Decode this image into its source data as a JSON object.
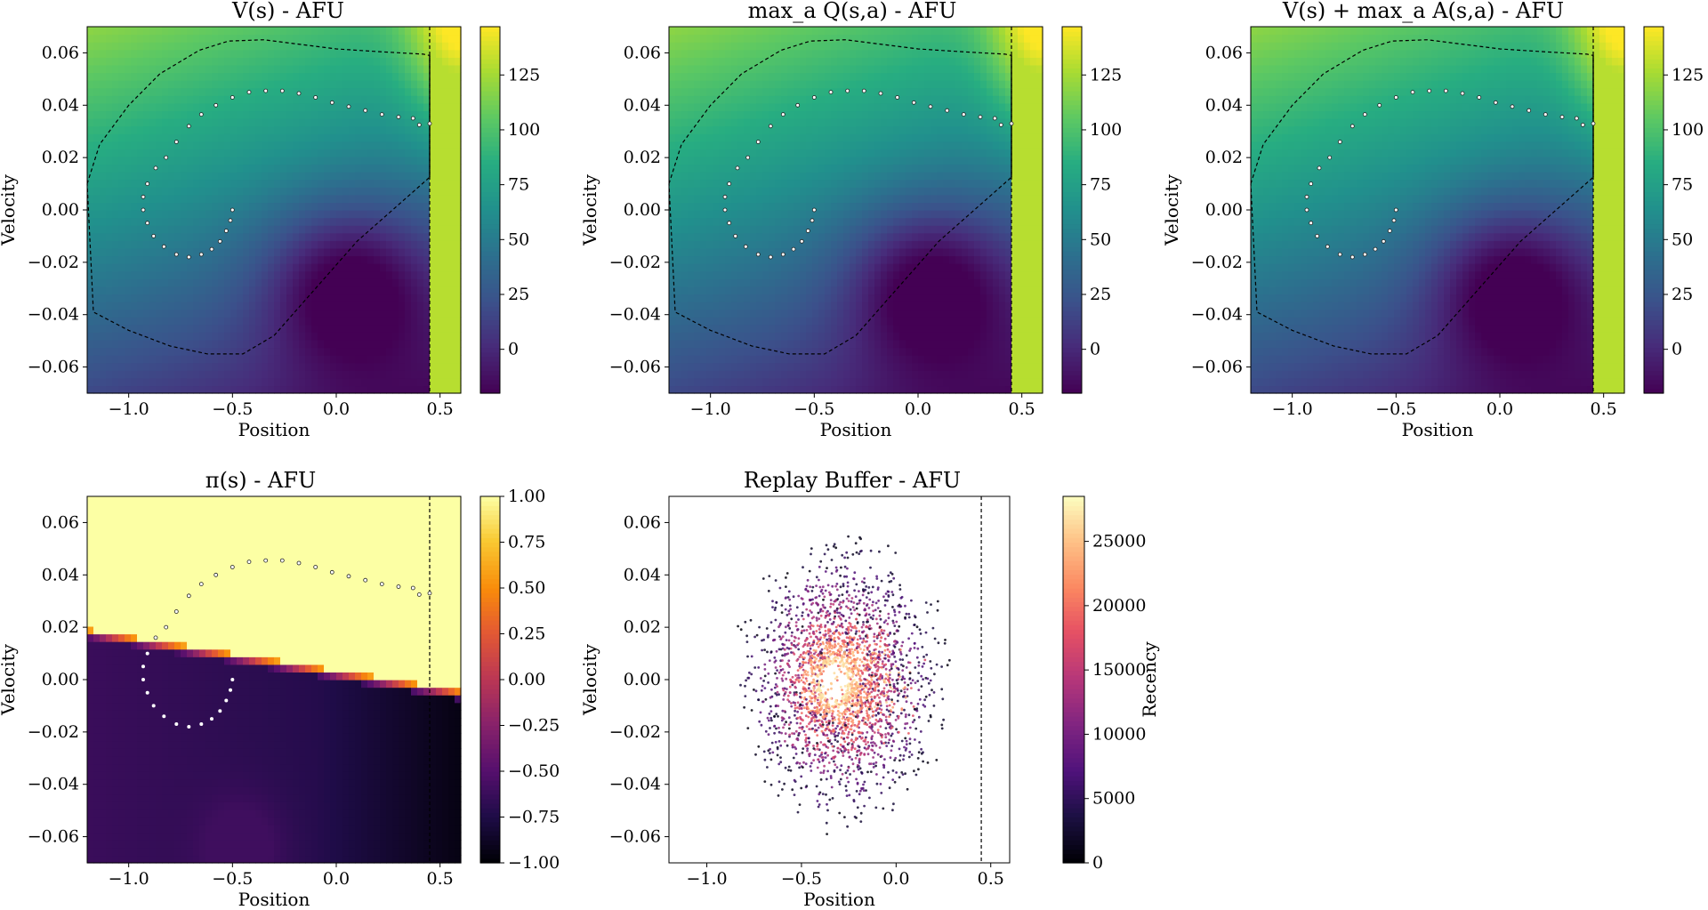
{
  "chart_data": [
    {
      "type": "heatmap",
      "title": "V(s) - AFU",
      "xlabel": "Position",
      "ylabel": "Velocity",
      "xlim": [
        -1.2,
        0.6
      ],
      "ylim": [
        -0.07,
        0.07
      ],
      "xticks": [
        -1.0,
        -0.5,
        0.0,
        0.5
      ],
      "xtick_labels": [
        "−1.0",
        "−0.5",
        "0.0",
        "0.5"
      ],
      "yticks": [
        -0.06,
        -0.04,
        -0.02,
        0.0,
        0.02,
        0.04,
        0.06
      ],
      "ytick_labels": [
        "−0.06",
        "−0.04",
        "−0.02",
        "0.00",
        "0.02",
        "0.04",
        "0.06"
      ],
      "colormap": "viridis",
      "clim": [
        -20,
        147
      ],
      "colorbar_ticks": [
        0,
        25,
        50,
        75,
        100,
        125
      ],
      "colorbar_tick_labels": [
        "0",
        "25",
        "50",
        "75",
        "100",
        "125"
      ],
      "goal_position": 0.45,
      "contour": true,
      "trajectory": true
    },
    {
      "type": "heatmap",
      "title": "max_a Q(s,a) - AFU",
      "xlabel": "Position",
      "ylabel": "Velocity",
      "xlim": [
        -1.2,
        0.6
      ],
      "ylim": [
        -0.07,
        0.07
      ],
      "xticks": [
        -1.0,
        -0.5,
        0.0,
        0.5
      ],
      "xtick_labels": [
        "−1.0",
        "−0.5",
        "0.0",
        "0.5"
      ],
      "yticks": [
        -0.06,
        -0.04,
        -0.02,
        0.0,
        0.02,
        0.04,
        0.06
      ],
      "ytick_labels": [
        "−0.06",
        "−0.04",
        "−0.02",
        "0.00",
        "0.02",
        "0.04",
        "0.06"
      ],
      "colormap": "viridis",
      "clim": [
        -20,
        147
      ],
      "colorbar_ticks": [
        0,
        25,
        50,
        75,
        100,
        125
      ],
      "colorbar_tick_labels": [
        "0",
        "25",
        "50",
        "75",
        "100",
        "125"
      ],
      "goal_position": 0.45,
      "contour": true,
      "trajectory": true
    },
    {
      "type": "heatmap",
      "title": "V(s) + max_a A(s,a) - AFU",
      "xlabel": "Position",
      "ylabel": "Velocity",
      "xlim": [
        -1.2,
        0.6
      ],
      "ylim": [
        -0.07,
        0.07
      ],
      "xticks": [
        -1.0,
        -0.5,
        0.0,
        0.5
      ],
      "xtick_labels": [
        "−1.0",
        "−0.5",
        "0.0",
        "0.5"
      ],
      "yticks": [
        -0.06,
        -0.04,
        -0.02,
        0.0,
        0.02,
        0.04,
        0.06
      ],
      "ytick_labels": [
        "−0.06",
        "−0.04",
        "−0.02",
        "0.00",
        "0.02",
        "0.04",
        "0.06"
      ],
      "colormap": "viridis",
      "clim": [
        -20,
        147
      ],
      "colorbar_ticks": [
        0,
        25,
        50,
        75,
        100,
        125
      ],
      "colorbar_tick_labels": [
        "0",
        "25",
        "50",
        "75",
        "100",
        "125"
      ],
      "goal_position": 0.45,
      "contour": true,
      "trajectory": true
    },
    {
      "type": "heatmap",
      "title": "π(s) - AFU",
      "xlabel": "Position",
      "ylabel": "Velocity",
      "xlim": [
        -1.2,
        0.6
      ],
      "ylim": [
        -0.07,
        0.07
      ],
      "xticks": [
        -1.0,
        -0.5,
        0.0,
        0.5
      ],
      "xtick_labels": [
        "−1.0",
        "−0.5",
        "0.0",
        "0.5"
      ],
      "yticks": [
        -0.06,
        -0.04,
        -0.02,
        0.0,
        0.02,
        0.04,
        0.06
      ],
      "ytick_labels": [
        "−0.06",
        "−0.04",
        "−0.02",
        "0.00",
        "0.02",
        "0.04",
        "0.06"
      ],
      "colormap": "inferno",
      "clim": [
        -1.0,
        1.0
      ],
      "colorbar_ticks": [
        -1.0,
        -0.75,
        -0.5,
        -0.25,
        0.0,
        0.25,
        0.5,
        0.75,
        1.0
      ],
      "colorbar_tick_labels": [
        "−1.00",
        "−0.75",
        "−0.50",
        "−0.25",
        "0.00",
        "0.25",
        "0.50",
        "0.75",
        "1.00"
      ],
      "goal_position": 0.45,
      "contour": false,
      "trajectory": true
    },
    {
      "type": "scatter",
      "title": "Replay Buffer - AFU",
      "xlabel": "Position",
      "ylabel": "Velocity",
      "xlim": [
        -1.2,
        0.6
      ],
      "ylim": [
        -0.07,
        0.07
      ],
      "xticks": [
        -1.0,
        -0.5,
        0.0,
        0.5
      ],
      "xtick_labels": [
        "−1.0",
        "−0.5",
        "0.0",
        "0.5"
      ],
      "yticks": [
        -0.06,
        -0.04,
        -0.02,
        0.0,
        0.02,
        0.04,
        0.06
      ],
      "ytick_labels": [
        "−0.06",
        "−0.04",
        "−0.02",
        "0.00",
        "0.02",
        "0.04",
        "0.06"
      ],
      "colormap": "magma",
      "clim": [
        0,
        28500
      ],
      "colorbar_ticks": [
        0,
        5000,
        10000,
        15000,
        20000,
        25000
      ],
      "colorbar_tick_labels": [
        "0",
        "5000",
        "10000",
        "15000",
        "20000",
        "25000"
      ],
      "colorbar_label": "Recency",
      "goal_position": 0.45
    }
  ]
}
